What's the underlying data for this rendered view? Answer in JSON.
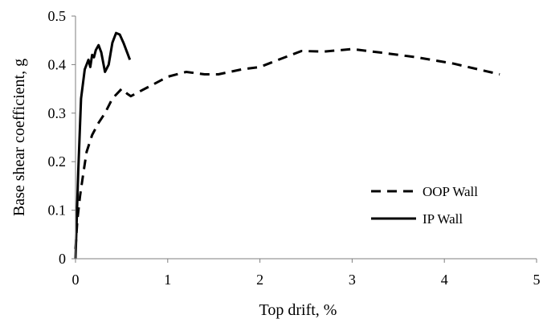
{
  "chart_data": {
    "type": "line",
    "title": "",
    "xlabel": "Top drift, %",
    "ylabel": "Base shear coefficient, g",
    "xlim": [
      0,
      5
    ],
    "ylim": [
      0,
      0.5
    ],
    "x_ticks": [
      "0",
      "1",
      "2",
      "3",
      "4",
      "5"
    ],
    "y_ticks": [
      "0",
      "0.1",
      "0.2",
      "0.3",
      "0.4",
      "0.5"
    ],
    "grid": false,
    "legend_position": "right",
    "series": [
      {
        "name": "OOP Wall",
        "line_style": "dashed",
        "color": "#000000",
        "x": [
          0,
          0.02,
          0.05,
          0.08,
          0.12,
          0.18,
          0.25,
          0.32,
          0.4,
          0.5,
          0.56,
          0.6,
          0.7,
          0.85,
          1.0,
          1.2,
          1.4,
          1.55,
          1.8,
          2.0,
          2.2,
          2.45,
          2.7,
          3.0,
          3.3,
          3.7,
          4.1,
          4.6
        ],
        "y": [
          0.02,
          0.08,
          0.13,
          0.17,
          0.22,
          0.255,
          0.28,
          0.3,
          0.33,
          0.35,
          0.34,
          0.335,
          0.345,
          0.36,
          0.375,
          0.385,
          0.38,
          0.38,
          0.39,
          0.395,
          0.41,
          0.428,
          0.427,
          0.432,
          0.425,
          0.415,
          0.402,
          0.38
        ]
      },
      {
        "name": "IP Wall",
        "line_style": "solid",
        "color": "#000000",
        "x": [
          0,
          0.03,
          0.06,
          0.1,
          0.14,
          0.16,
          0.18,
          0.2,
          0.22,
          0.25,
          0.28,
          0.32,
          0.36,
          0.4,
          0.44,
          0.48,
          0.52,
          0.56,
          0.59
        ],
        "y": [
          0,
          0.18,
          0.33,
          0.39,
          0.41,
          0.395,
          0.42,
          0.415,
          0.43,
          0.44,
          0.425,
          0.385,
          0.4,
          0.445,
          0.465,
          0.462,
          0.445,
          0.425,
          0.41
        ]
      }
    ]
  }
}
